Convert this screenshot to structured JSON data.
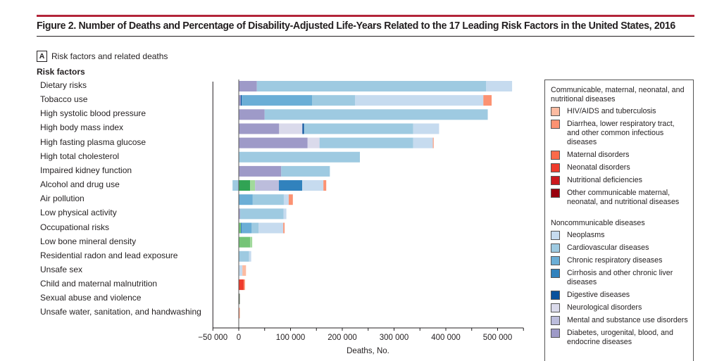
{
  "figure": {
    "title": "Figure 2. Number of Deaths and Percentage of Disability-Adjusted Life-Years Related to the 17 Leading Risk Factors in the United States, 2016",
    "panel_letter": "A",
    "panel_title": "Risk factors and related deaths",
    "risk_factors_heading": "Risk factors"
  },
  "legend": {
    "groups": [
      {
        "title": "Communicable, maternal, neonatal, and nutritional diseases",
        "items": [
          {
            "key": "hiv",
            "label": "HIV/AIDS and tuberculosis",
            "color": "#fcbba1"
          },
          {
            "key": "diarrhea",
            "label": "Diarrhea, lower respiratory tract, and other common infectious diseases",
            "color": "#fc9272"
          },
          {
            "key": "maternal",
            "label": "Maternal disorders",
            "color": "#fb6a4a"
          },
          {
            "key": "neonatal",
            "label": "Neonatal disorders",
            "color": "#ef3b2c"
          },
          {
            "key": "nutritional",
            "label": "Nutritional deficiencies",
            "color": "#cb181d"
          },
          {
            "key": "other_cmnn",
            "label": "Other communicable maternal, neonatal, and nutritional diseases",
            "color": "#99000d"
          }
        ]
      },
      {
        "title": "Noncommunicable diseases",
        "items": [
          {
            "key": "neoplasms",
            "label": "Neoplasms",
            "color": "#c6dbef"
          },
          {
            "key": "cvd",
            "label": "Cardiovascular diseases",
            "color": "#9ecae1"
          },
          {
            "key": "chronic_resp",
            "label": "Chronic respiratory diseases",
            "color": "#6baed6"
          },
          {
            "key": "cirrhosis",
            "label": "Cirrhosis and other chronic liver diseases",
            "color": "#3182bd"
          },
          {
            "key": "digestive",
            "label": "Digestive diseases",
            "color": "#08519c"
          },
          {
            "key": "neuro",
            "label": "Neurological disorders",
            "color": "#dadaeb"
          },
          {
            "key": "mental",
            "label": "Mental and substance use disorders",
            "color": "#bcbddc"
          },
          {
            "key": "diabetes",
            "label": "Diabetes, urogenital, blood, and endocrine diseases",
            "color": "#9e9ac8"
          }
        ]
      }
    ]
  },
  "chart_data": {
    "type": "bar",
    "orientation": "horizontal",
    "stacked": true,
    "title": "Risk factors and related deaths",
    "xlabel": "Deaths, No.",
    "ylabel": "Risk factors",
    "xlim": [
      -50000,
      550000
    ],
    "xticks": [
      -50000,
      0,
      100000,
      200000,
      300000,
      400000,
      500000
    ],
    "xtick_labels": [
      "−50 000",
      "0",
      "100 000",
      "200 000",
      "300 000",
      "400 000",
      "500 000"
    ],
    "grid": false,
    "legend_position": "right",
    "extra_colors": {
      "injury_dark": "#31a354",
      "injury_light": "#a1d99b",
      "injury_mid": "#74c476",
      "injury_other": "#5a6b55"
    },
    "categories": [
      "Dietary risks",
      "Tobacco use",
      "High systolic blood pressure",
      "High body mass index",
      "High fasting plasma glucose",
      "High total cholesterol",
      "Impaired kidney function",
      "Alcohol and drug use",
      "Air pollution",
      "Low physical activity",
      "Occupational risks",
      "Low bone mineral density",
      "Residential radon and lead exposure",
      "Unsafe sex",
      "Child and maternal malnutrition",
      "Sexual abuse and violence",
      "Unsafe water, sanitation, and handwashing"
    ],
    "bars": [
      {
        "segments": [
          [
            "diabetes",
            35000
          ],
          [
            "cvd",
            443000
          ],
          [
            "neoplasms",
            50000
          ]
        ]
      },
      {
        "segments": [
          [
            "diabetes",
            4000
          ],
          [
            "digestive",
            1500
          ],
          [
            "chronic_resp",
            136000
          ],
          [
            "cvd",
            83000
          ],
          [
            "neoplasms",
            248000
          ],
          [
            "diarrhea",
            16000
          ]
        ]
      },
      {
        "segments": [
          [
            "diabetes",
            50000
          ],
          [
            "cvd",
            431000
          ]
        ]
      },
      {
        "segments": [
          [
            "diabetes",
            78000
          ],
          [
            "neuro",
            45000
          ],
          [
            "digestive",
            3000
          ],
          [
            "cvd",
            211000
          ],
          [
            "neoplasms",
            50000
          ]
        ]
      },
      {
        "segments": [
          [
            "diabetes",
            133000
          ],
          [
            "neuro",
            23000
          ],
          [
            "cvd",
            181000
          ],
          [
            "neoplasms",
            38000
          ],
          [
            "diarrhea",
            1500
          ]
        ]
      },
      {
        "segments": [
          [
            "cvd",
            234000
          ]
        ]
      },
      {
        "segments": [
          [
            "diabetes",
            82000
          ],
          [
            "cvd",
            94000
          ]
        ]
      },
      {
        "negative": [
          [
            "cvd",
            -12000
          ]
        ],
        "segments": [
          [
            "injury_dark",
            22000
          ],
          [
            "injury_light",
            9500
          ],
          [
            "mental",
            46000
          ],
          [
            "cirrhosis",
            45000
          ],
          [
            "neoplasms",
            41000
          ],
          [
            "diarrhea",
            5500
          ]
        ]
      },
      {
        "segments": [
          [
            "chronic_resp",
            27000
          ],
          [
            "cvd",
            60000
          ],
          [
            "neoplasms",
            9500
          ],
          [
            "diarrhea",
            8000
          ]
        ]
      },
      {
        "segments": [
          [
            "diabetes",
            2500
          ],
          [
            "cvd",
            84000
          ],
          [
            "neoplasms",
            5500
          ]
        ]
      },
      {
        "segments": [
          [
            "injury_mid",
            4000
          ],
          [
            "digestive",
            1000
          ],
          [
            "chronic_resp",
            20000
          ],
          [
            "cvd",
            13500
          ],
          [
            "neoplasms",
            47500
          ],
          [
            "diarrhea",
            2500
          ]
        ]
      },
      {
        "segments": [
          [
            "injury_mid",
            22000
          ],
          [
            "injury_light",
            4000
          ]
        ]
      },
      {
        "segments": [
          [
            "cvd",
            20000
          ],
          [
            "neoplasms",
            4000
          ]
        ]
      },
      {
        "segments": [
          [
            "neoplasms",
            7000
          ],
          [
            "hiv",
            7000
          ]
        ]
      },
      {
        "segments": [
          [
            "neonatal",
            9500
          ],
          [
            "diarrhea",
            2500
          ]
        ]
      },
      {
        "segments": [
          [
            "injury_other",
            2000
          ]
        ]
      },
      {
        "segments": [
          [
            "diarrhea",
            2000
          ]
        ]
      }
    ]
  }
}
